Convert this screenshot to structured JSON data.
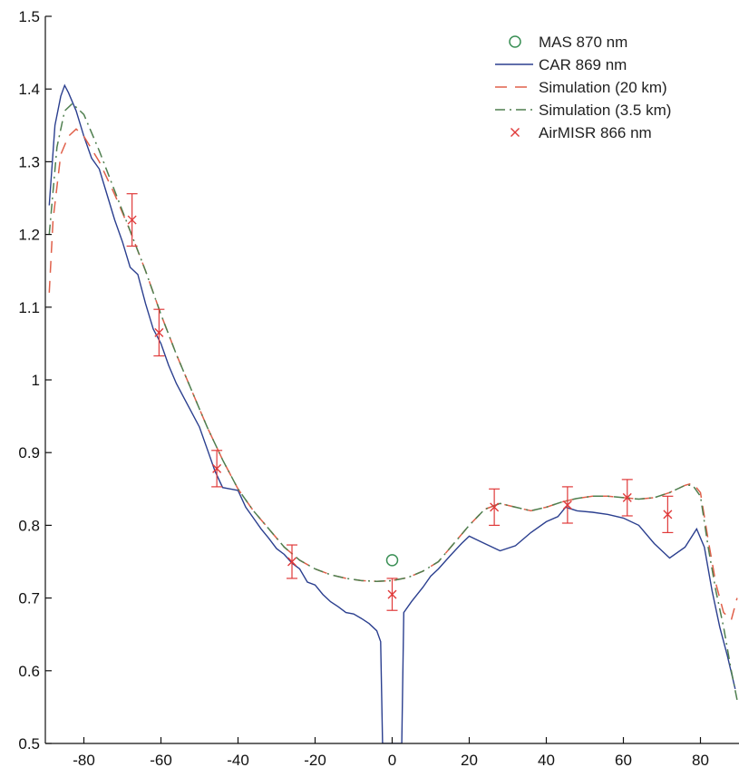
{
  "chart_data": {
    "type": "line",
    "title": "",
    "xlabel": "",
    "ylabel": "",
    "xlim": [
      -90,
      90
    ],
    "ylim": [
      0.5,
      1.5
    ],
    "xticks": [
      -80,
      -60,
      -40,
      -20,
      0,
      20,
      40,
      60,
      80
    ],
    "yticks": [
      0.5,
      0.6,
      0.7,
      0.8,
      0.9,
      1,
      1.1,
      1.2,
      1.3,
      1.4,
      1.5
    ],
    "xtick_labels": [
      "-80",
      "-60",
      "-40",
      "-20",
      "0",
      "20",
      "40",
      "60",
      "80"
    ],
    "ytick_labels": [
      "0.5",
      "0.6",
      "0.7",
      "0.8",
      "0.9",
      "1",
      "1.1",
      "1.2",
      "1.3",
      "1.4",
      "1.5"
    ],
    "grid": false,
    "legend_position": "top-right",
    "series": [
      {
        "name": "MAS 870 nm",
        "style": "circle",
        "color": "#3a8f55",
        "points": [
          [
            0,
            0.752
          ]
        ]
      },
      {
        "name": "CAR 869 nm",
        "style": "solid",
        "color": "#2b3f8f",
        "points": [
          [
            -89,
            1.24
          ],
          [
            -87.5,
            1.35
          ],
          [
            -86,
            1.39
          ],
          [
            -85,
            1.405
          ],
          [
            -84,
            1.395
          ],
          [
            -82,
            1.37
          ],
          [
            -80,
            1.335
          ],
          [
            -78,
            1.305
          ],
          [
            -76,
            1.29
          ],
          [
            -74,
            1.255
          ],
          [
            -72,
            1.22
          ],
          [
            -70,
            1.19
          ],
          [
            -68,
            1.155
          ],
          [
            -66,
            1.145
          ],
          [
            -64,
            1.105
          ],
          [
            -62,
            1.07
          ],
          [
            -60,
            1.05
          ],
          [
            -58,
            1.02
          ],
          [
            -56,
            0.995
          ],
          [
            -54,
            0.975
          ],
          [
            -52,
            0.955
          ],
          [
            -50,
            0.935
          ],
          [
            -48,
            0.905
          ],
          [
            -46,
            0.875
          ],
          [
            -44,
            0.852
          ],
          [
            -42,
            0.85
          ],
          [
            -40,
            0.848
          ],
          [
            -38,
            0.825
          ],
          [
            -36,
            0.81
          ],
          [
            -34,
            0.795
          ],
          [
            -32,
            0.782
          ],
          [
            -30,
            0.768
          ],
          [
            -28,
            0.76
          ],
          [
            -26,
            0.748
          ],
          [
            -24,
            0.74
          ],
          [
            -22,
            0.722
          ],
          [
            -20,
            0.718
          ],
          [
            -18,
            0.705
          ],
          [
            -16,
            0.695
          ],
          [
            -14,
            0.688
          ],
          [
            -12,
            0.68
          ],
          [
            -10,
            0.678
          ],
          [
            -8,
            0.672
          ],
          [
            -6,
            0.665
          ],
          [
            -4,
            0.655
          ],
          [
            -3,
            0.64
          ],
          [
            -2.5,
            0.5
          ],
          [
            2.5,
            0.5
          ],
          [
            3,
            0.68
          ],
          [
            5,
            0.695
          ],
          [
            8,
            0.715
          ],
          [
            10,
            0.73
          ],
          [
            12,
            0.74
          ],
          [
            15,
            0.758
          ],
          [
            18,
            0.775
          ],
          [
            20,
            0.785
          ],
          [
            24,
            0.775
          ],
          [
            28,
            0.765
          ],
          [
            32,
            0.772
          ],
          [
            36,
            0.79
          ],
          [
            40,
            0.805
          ],
          [
            43,
            0.812
          ],
          [
            45,
            0.825
          ],
          [
            48,
            0.82
          ],
          [
            52,
            0.818
          ],
          [
            56,
            0.815
          ],
          [
            60,
            0.81
          ],
          [
            64,
            0.8
          ],
          [
            68,
            0.775
          ],
          [
            72,
            0.755
          ],
          [
            76,
            0.77
          ],
          [
            79,
            0.795
          ],
          [
            81,
            0.77
          ],
          [
            83,
            0.71
          ],
          [
            85,
            0.66
          ],
          [
            87,
            0.62
          ],
          [
            89,
            0.575
          ]
        ]
      },
      {
        "name": "Simulation (20 km)",
        "style": "dashed",
        "color": "#e0604a",
        "points": [
          [
            -89,
            1.12
          ],
          [
            -88,
            1.22
          ],
          [
            -86,
            1.31
          ],
          [
            -84,
            1.335
          ],
          [
            -82,
            1.345
          ],
          [
            -80,
            1.335
          ],
          [
            -76,
            1.3
          ],
          [
            -72,
            1.255
          ],
          [
            -68,
            1.205
          ],
          [
            -64,
            1.15
          ],
          [
            -60,
            1.09
          ],
          [
            -56,
            1.035
          ],
          [
            -52,
            0.985
          ],
          [
            -48,
            0.935
          ],
          [
            -44,
            0.89
          ],
          [
            -40,
            0.85
          ],
          [
            -36,
            0.82
          ],
          [
            -32,
            0.795
          ],
          [
            -28,
            0.77
          ],
          [
            -24,
            0.752
          ],
          [
            -20,
            0.74
          ],
          [
            -16,
            0.732
          ],
          [
            -12,
            0.727
          ],
          [
            -8,
            0.724
          ],
          [
            -4,
            0.723
          ],
          [
            0,
            0.724
          ],
          [
            4,
            0.728
          ],
          [
            8,
            0.737
          ],
          [
            12,
            0.75
          ],
          [
            16,
            0.775
          ],
          [
            20,
            0.8
          ],
          [
            24,
            0.822
          ],
          [
            28,
            0.83
          ],
          [
            32,
            0.825
          ],
          [
            36,
            0.82
          ],
          [
            40,
            0.825
          ],
          [
            44,
            0.832
          ],
          [
            48,
            0.837
          ],
          [
            52,
            0.84
          ],
          [
            56,
            0.84
          ],
          [
            60,
            0.838
          ],
          [
            64,
            0.836
          ],
          [
            68,
            0.838
          ],
          [
            72,
            0.845
          ],
          [
            76,
            0.855
          ],
          [
            78,
            0.858
          ],
          [
            80,
            0.845
          ],
          [
            82,
            0.78
          ],
          [
            84,
            0.72
          ],
          [
            86,
            0.68
          ],
          [
            88,
            0.67
          ],
          [
            89.5,
            0.7
          ]
        ]
      },
      {
        "name": "Simulation (3.5 km)",
        "style": "dashdot",
        "color": "#4f7f4f",
        "points": [
          [
            -89,
            1.2
          ],
          [
            -87,
            1.32
          ],
          [
            -85,
            1.37
          ],
          [
            -83,
            1.38
          ],
          [
            -80,
            1.365
          ],
          [
            -76,
            1.315
          ],
          [
            -72,
            1.26
          ],
          [
            -68,
            1.205
          ],
          [
            -64,
            1.15
          ],
          [
            -60,
            1.09
          ],
          [
            -56,
            1.035
          ],
          [
            -52,
            0.985
          ],
          [
            -48,
            0.935
          ],
          [
            -44,
            0.89
          ],
          [
            -40,
            0.85
          ],
          [
            -36,
            0.82
          ],
          [
            -32,
            0.795
          ],
          [
            -28,
            0.77
          ],
          [
            -24,
            0.752
          ],
          [
            -20,
            0.74
          ],
          [
            -16,
            0.732
          ],
          [
            -12,
            0.727
          ],
          [
            -8,
            0.724
          ],
          [
            -4,
            0.723
          ],
          [
            0,
            0.724
          ],
          [
            4,
            0.728
          ],
          [
            8,
            0.737
          ],
          [
            12,
            0.75
          ],
          [
            16,
            0.775
          ],
          [
            20,
            0.8
          ],
          [
            24,
            0.822
          ],
          [
            28,
            0.83
          ],
          [
            32,
            0.825
          ],
          [
            36,
            0.82
          ],
          [
            40,
            0.825
          ],
          [
            44,
            0.832
          ],
          [
            48,
            0.837
          ],
          [
            52,
            0.84
          ],
          [
            56,
            0.84
          ],
          [
            60,
            0.838
          ],
          [
            64,
            0.836
          ],
          [
            68,
            0.838
          ],
          [
            72,
            0.845
          ],
          [
            76,
            0.855
          ],
          [
            78,
            0.855
          ],
          [
            80,
            0.84
          ],
          [
            82,
            0.77
          ],
          [
            84,
            0.71
          ],
          [
            86,
            0.66
          ],
          [
            88,
            0.6
          ],
          [
            89.5,
            0.56
          ]
        ]
      },
      {
        "name": "AirMISR 866 nm",
        "style": "cross-errorbar",
        "color": "#e03a3a",
        "points": [
          {
            "x": -67.5,
            "y": 1.22,
            "err": 0.036
          },
          {
            "x": -60.5,
            "y": 1.065,
            "err": 0.032
          },
          {
            "x": -45.5,
            "y": 0.878,
            "err": 0.025
          },
          {
            "x": -26,
            "y": 0.75,
            "err": 0.023
          },
          {
            "x": 0,
            "y": 0.705,
            "err": 0.022
          },
          {
            "x": 26.5,
            "y": 0.825,
            "err": 0.025
          },
          {
            "x": 45.5,
            "y": 0.828,
            "err": 0.025
          },
          {
            "x": 61,
            "y": 0.838,
            "err": 0.025
          },
          {
            "x": 71.5,
            "y": 0.815,
            "err": 0.025
          }
        ]
      }
    ]
  }
}
